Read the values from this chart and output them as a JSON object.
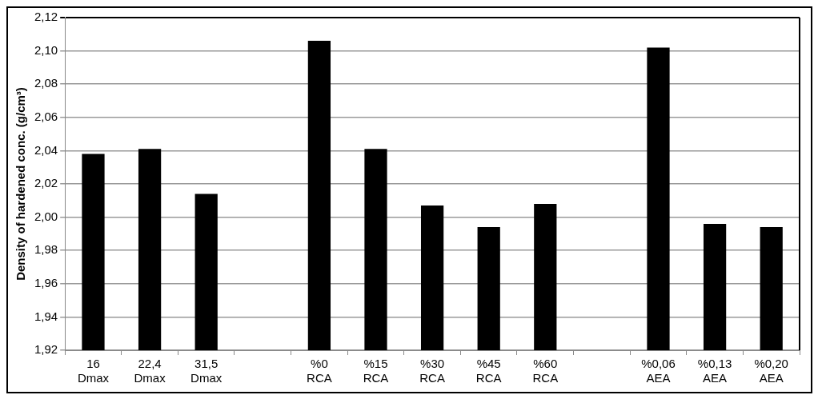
{
  "chart_data": {
    "type": "bar",
    "ylabel": "Density of hardened conc. (g/cm³)",
    "categories": [
      "16 Dmax",
      "22,4 Dmax",
      "31,5 Dmax",
      null,
      "%0 RCA",
      "%15 RCA",
      "%30 RCA",
      "%45 RCA",
      "%60 RCA",
      null,
      "%0,06 AEA",
      "%0,13 AEA",
      "%0,20 AEA"
    ],
    "series": [
      {
        "color": "#000000",
        "values": [
          2.038,
          2.041,
          2.014,
          null,
          2.106,
          2.041,
          2.007,
          1.994,
          2.008,
          null,
          2.102,
          1.996,
          1.994
        ]
      }
    ],
    "ylim": [
      1.92,
      2.12
    ],
    "yticks": [
      {
        "value": 1.92,
        "label": "1,92"
      },
      {
        "value": 1.94,
        "label": "1,94"
      },
      {
        "value": 1.96,
        "label": "1,96"
      },
      {
        "value": 1.98,
        "label": "1,98"
      },
      {
        "value": 2.0,
        "label": "2,00"
      },
      {
        "value": 2.02,
        "label": "2,02"
      },
      {
        "value": 2.04,
        "label": "2,04"
      },
      {
        "value": 2.06,
        "label": "2,06"
      },
      {
        "value": 2.08,
        "label": "2,08"
      },
      {
        "value": 2.1,
        "label": "2,10"
      },
      {
        "value": 2.12,
        "label": "2,12"
      }
    ],
    "grid": "y",
    "legend": false
  }
}
